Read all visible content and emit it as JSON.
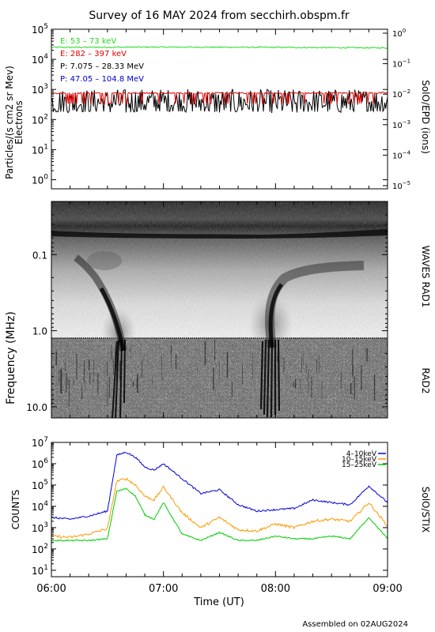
{
  "title": "Survey of 16 MAY 2024 from secchirh.obspm.fr",
  "footer": "Assembled on 02AUG2024",
  "panel1": {
    "ylabel": "Particles/(s cm2 sr Mev)",
    "ylabel2": "Electrons",
    "right_label": "SolO/EPD (ions)",
    "legend": [
      {
        "text": "E: 53 – 73 keV",
        "color": "#22dd22"
      },
      {
        "text": "E: 282 – 397 keV",
        "color": "#dd0000"
      },
      {
        "text": "P: 7.075 – 28.33 MeV",
        "color": "#000000"
      },
      {
        "text": "P: 47.05 – 104.8 MeV",
        "color": "#0000cc"
      }
    ],
    "left_ticks": [
      {
        "v": 1,
        "base": "10",
        "exp": "0"
      },
      {
        "v": 10,
        "base": "10",
        "exp": "1"
      },
      {
        "v": 100,
        "base": "10",
        "exp": "2"
      },
      {
        "v": 1000,
        "base": "10",
        "exp": "3"
      },
      {
        "v": 10000,
        "base": "10",
        "exp": "4"
      },
      {
        "v": 100000,
        "base": "10",
        "exp": "5"
      }
    ],
    "right_ticks": [
      {
        "v": 1e-05,
        "base": "10",
        "exp": "−5"
      },
      {
        "v": 0.0001,
        "base": "10",
        "exp": "−4"
      },
      {
        "v": 0.001,
        "base": "10",
        "exp": "−3"
      },
      {
        "v": 0.01,
        "base": "10",
        "exp": "−2"
      },
      {
        "v": 0.1,
        "base": "10",
        "exp": "−1"
      },
      {
        "v": 1,
        "base": "10",
        "exp": "0"
      }
    ]
  },
  "panel2": {
    "ylabel": "Frequency (MHz)",
    "right_label_top": "WAVES RAD1",
    "right_label_bottom": "RAD2",
    "ticks": [
      {
        "v": 0.1,
        "label": "0.1"
      },
      {
        "v": 1.0,
        "label": "1.0"
      },
      {
        "v": 10.0,
        "label": "10.0"
      }
    ]
  },
  "panel3": {
    "ylabel": "COUNTS",
    "right_label": "SolO/STIX",
    "legend": [
      {
        "text": "4–10keV",
        "color": "#0000dd"
      },
      {
        "text": "10–15keV",
        "color": "#ff9900"
      },
      {
        "text": "15–25keV",
        "color": "#00cc00"
      }
    ],
    "ticks": [
      {
        "v": 10,
        "base": "10",
        "exp": "1"
      },
      {
        "v": 100,
        "base": "10",
        "exp": "2"
      },
      {
        "v": 1000,
        "base": "10",
        "exp": "3"
      },
      {
        "v": 10000,
        "base": "10",
        "exp": "4"
      },
      {
        "v": 100000,
        "base": "10",
        "exp": "5"
      },
      {
        "v": 1000000,
        "base": "10",
        "exp": "6"
      },
      {
        "v": 10000000,
        "base": "10",
        "exp": "7"
      }
    ]
  },
  "xaxis": {
    "label": "Time (UT)",
    "ticks": [
      "06:00",
      "07:00",
      "08:00",
      "09:00"
    ]
  },
  "chart_data": [
    {
      "type": "line",
      "title": "SolO/EPD",
      "x_range": [
        "06:00",
        "09:00"
      ],
      "y_scale": "log",
      "ylim": [
        0.5,
        100000
      ],
      "series": [
        {
          "name": "E: 53 – 73 keV",
          "color": "#22dd22",
          "x": [
            "06:00",
            "07:00",
            "08:00",
            "09:00"
          ],
          "values": [
            25000,
            25500,
            25000,
            24000
          ]
        },
        {
          "name": "E: 282 – 397 keV",
          "color": "#dd0000",
          "x": [
            "06:00",
            "07:00",
            "08:00",
            "09:00"
          ],
          "values": [
            750,
            760,
            750,
            770
          ]
        },
        {
          "name": "P: 7.075 – 28.33 MeV",
          "color": "#000000",
          "x": [
            "06:00",
            "07:00",
            "08:00",
            "09:00"
          ],
          "values": [
            400,
            420,
            400,
            420
          ]
        }
      ]
    },
    {
      "type": "heatmap",
      "title": "WAVES RAD1 / RAD2 dynamic spectrum",
      "x_range": [
        "06:00",
        "09:00"
      ],
      "y_scale": "log",
      "ylim": [
        0.02,
        14
      ],
      "type_iii_bursts": [
        {
          "start": "06:33",
          "end": "06:37"
        },
        {
          "start": "07:52",
          "end": "07:58"
        }
      ]
    },
    {
      "type": "line",
      "title": "SolO/STIX",
      "y_scale": "log",
      "ylim": [
        5,
        10000000
      ],
      "x": [
        "06:00",
        "06:10",
        "06:20",
        "06:30",
        "06:35",
        "06:40",
        "06:45",
        "06:50",
        "06:55",
        "07:00",
        "07:10",
        "07:20",
        "07:30",
        "07:40",
        "07:50",
        "08:00",
        "08:10",
        "08:20",
        "08:30",
        "08:40",
        "08:50",
        "09:00"
      ],
      "series": [
        {
          "name": "4–10keV",
          "color": "#0000dd",
          "values": [
            3000,
            2500,
            3500,
            6000,
            2500000,
            3500000,
            2000000,
            700000,
            500000,
            1000000,
            200000,
            40000,
            60000,
            12000,
            6000,
            7000,
            8000,
            20000,
            15000,
            12000,
            90000,
            15000
          ]
        },
        {
          "name": "10–15keV",
          "color": "#ff9900",
          "values": [
            400,
            350,
            500,
            900,
            150000,
            200000,
            100000,
            30000,
            20000,
            80000,
            5000,
            1000,
            3000,
            800,
            700,
            1500,
            1000,
            2000,
            2500,
            2000,
            15000,
            1200
          ]
        },
        {
          "name": "15–25keV",
          "color": "#00cc00",
          "values": [
            250,
            250,
            250,
            300,
            50000,
            70000,
            30000,
            4000,
            2500,
            15000,
            500,
            250,
            600,
            250,
            250,
            400,
            300,
            300,
            400,
            300,
            3000,
            300
          ]
        }
      ]
    }
  ]
}
